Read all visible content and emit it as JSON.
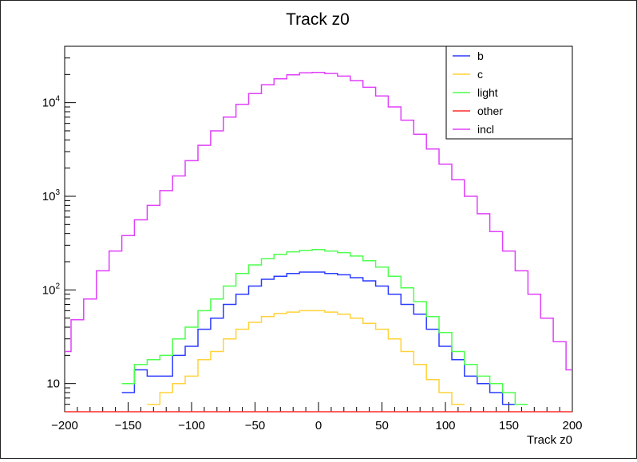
{
  "chart_data": {
    "type": "line",
    "title": "Track z0",
    "xlabel": "Track z0",
    "ylabel": "",
    "xlim": [
      -200,
      200
    ],
    "ylim": [
      5,
      40000
    ],
    "yscale": "log",
    "grid": false,
    "legend_position": "top-right",
    "x_ticks": [
      -200,
      -150,
      -100,
      -50,
      0,
      50,
      100,
      150,
      200
    ],
    "x_tick_labels": [
      "−200",
      "−150",
      "−100",
      "−50",
      "0",
      "50",
      "100",
      "150",
      "200"
    ],
    "y_ticks": [
      10,
      100,
      1000,
      10000
    ],
    "y_tick_labels": [
      "10",
      "10",
      "10",
      "10"
    ],
    "y_tick_superscripts": [
      "",
      "2",
      "3",
      "4"
    ],
    "x": [
      -200,
      -190,
      -180,
      -170,
      -160,
      -150,
      -140,
      -130,
      -120,
      -110,
      -100,
      -90,
      -80,
      -70,
      -60,
      -50,
      -40,
      -30,
      -20,
      -10,
      0,
      10,
      20,
      30,
      40,
      50,
      60,
      70,
      80,
      90,
      100,
      110,
      120,
      130,
      140,
      150,
      160,
      170,
      180,
      190,
      200
    ],
    "series": [
      {
        "name": "b",
        "color": "#2b3bff",
        "values": [
          null,
          null,
          null,
          null,
          null,
          8,
          14,
          12,
          12,
          20,
          25,
          38,
          50,
          70,
          90,
          110,
          130,
          140,
          150,
          155,
          155,
          150,
          145,
          135,
          125,
          110,
          90,
          70,
          55,
          38,
          25,
          18,
          12,
          10,
          8,
          6,
          null,
          null,
          null,
          null,
          null
        ]
      },
      {
        "name": "c",
        "color": "#ffd23a",
        "values": [
          null,
          null,
          null,
          null,
          null,
          null,
          null,
          6,
          8,
          10,
          12,
          18,
          22,
          30,
          38,
          45,
          52,
          56,
          58,
          60,
          60,
          58,
          55,
          50,
          44,
          38,
          30,
          22,
          16,
          11,
          8,
          6,
          null,
          null,
          null,
          null,
          null,
          null,
          null,
          null,
          null
        ]
      },
      {
        "name": "light",
        "color": "#4dff4d",
        "values": [
          null,
          null,
          null,
          null,
          null,
          10,
          16,
          18,
          20,
          30,
          40,
          60,
          80,
          110,
          150,
          185,
          215,
          240,
          255,
          265,
          270,
          260,
          250,
          230,
          205,
          175,
          140,
          105,
          75,
          52,
          35,
          22,
          16,
          12,
          10,
          8,
          6,
          null,
          null,
          null,
          null
        ]
      },
      {
        "name": "other",
        "color": "#ff2b2b",
        "values": [
          5,
          5,
          5,
          5,
          5,
          5,
          5,
          5,
          5,
          5,
          5,
          5,
          5,
          5,
          5,
          5,
          5,
          5,
          5,
          5,
          5,
          5,
          5,
          5,
          5,
          5,
          5,
          5,
          5,
          5,
          5,
          5,
          5,
          5,
          5,
          5,
          5,
          5,
          5,
          5,
          5
        ]
      },
      {
        "name": "incl",
        "color": "#e040fb",
        "values": [
          22,
          48,
          80,
          160,
          260,
          380,
          560,
          800,
          1150,
          1650,
          2400,
          3500,
          5000,
          7000,
          9600,
          12500,
          15500,
          18000,
          19800,
          20800,
          21000,
          20500,
          19200,
          17200,
          14600,
          11800,
          9000,
          6500,
          4600,
          3200,
          2200,
          1500,
          1000,
          650,
          420,
          260,
          160,
          90,
          50,
          28,
          14
        ]
      }
    ]
  }
}
